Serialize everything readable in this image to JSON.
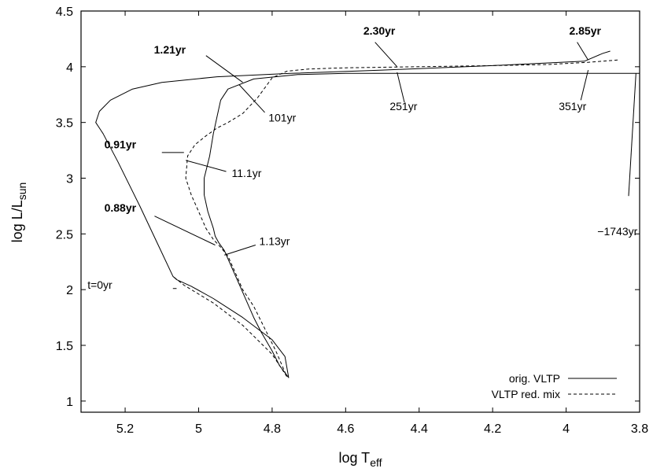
{
  "chart_data": {
    "type": "line",
    "xlabel": "log T",
    "xlabel_sub": "eff",
    "ylabel": "log L/L",
    "ylabel_sub": "sun",
    "xlim": [
      5.32,
      3.8
    ],
    "ylim": [
      0.9,
      4.5
    ],
    "x_reversed": true,
    "grid": false,
    "legend_position": "bottom-right",
    "x_ticks": [
      {
        "v": 5.2,
        "label": "5.2"
      },
      {
        "v": 5.0,
        "label": "5"
      },
      {
        "v": 4.8,
        "label": "4.8"
      },
      {
        "v": 4.6,
        "label": "4.6"
      },
      {
        "v": 4.4,
        "label": "4.4"
      },
      {
        "v": 4.2,
        "label": "4.2"
      },
      {
        "v": 4.0,
        "label": "4"
      },
      {
        "v": 3.8,
        "label": "3.8"
      }
    ],
    "y_ticks": [
      {
        "v": 1.0,
        "label": "1"
      },
      {
        "v": 1.5,
        "label": "1.5"
      },
      {
        "v": 2.0,
        "label": "2"
      },
      {
        "v": 2.5,
        "label": "2.5"
      },
      {
        "v": 3.0,
        "label": "3"
      },
      {
        "v": 3.5,
        "label": "3.5"
      },
      {
        "v": 4.0,
        "label": "4"
      },
      {
        "v": 4.5,
        "label": "4.5"
      }
    ],
    "series": [
      {
        "name": "orig. VLTP",
        "style": "solid",
        "x": [
          3.8,
          3.86,
          3.94,
          4.05,
          4.2,
          4.4,
          4.6,
          4.73,
          4.85,
          4.92,
          4.94,
          4.95,
          4.96,
          4.97,
          4.985,
          4.985,
          4.975,
          4.96,
          4.955,
          4.945,
          4.93,
          4.91,
          4.89,
          4.87,
          4.85,
          4.83,
          4.8,
          4.78,
          4.755,
          4.765,
          4.8,
          4.88,
          4.96,
          5.02,
          5.06,
          5.07,
          5.11,
          5.16,
          5.22,
          5.26,
          5.28,
          5.27,
          5.24,
          5.18,
          5.1,
          4.95,
          4.75,
          4.5,
          4.2,
          3.95,
          3.9,
          3.88
        ],
        "y": [
          3.94,
          3.94,
          3.94,
          3.94,
          3.94,
          3.94,
          3.94,
          3.93,
          3.89,
          3.8,
          3.7,
          3.55,
          3.4,
          3.2,
          3.0,
          2.85,
          2.7,
          2.55,
          2.48,
          2.42,
          2.35,
          2.2,
          2.05,
          1.9,
          1.75,
          1.62,
          1.45,
          1.32,
          1.21,
          1.4,
          1.55,
          1.75,
          1.92,
          2.03,
          2.09,
          2.12,
          2.4,
          2.75,
          3.15,
          3.4,
          3.5,
          3.6,
          3.7,
          3.8,
          3.86,
          3.91,
          3.94,
          3.97,
          4.01,
          4.05,
          4.12,
          4.14
        ]
      },
      {
        "name": "VLTP red. mix",
        "style": "dashed",
        "x": [
          3.86,
          3.94,
          4.05,
          4.2,
          4.4,
          4.6,
          4.7,
          4.76,
          4.8,
          4.84,
          4.88,
          4.92,
          4.95,
          4.98,
          5.01,
          5.03,
          5.035,
          5.02,
          5.0,
          4.98,
          4.96,
          4.94,
          4.92,
          4.9,
          4.88,
          4.85,
          4.82,
          4.79,
          4.76,
          4.8,
          4.88,
          4.96,
          5.04,
          5.07
        ],
        "y": [
          4.06,
          4.04,
          4.02,
          4.01,
          4.0,
          3.99,
          3.98,
          3.96,
          3.9,
          3.72,
          3.58,
          3.5,
          3.45,
          3.38,
          3.3,
          3.2,
          3.0,
          2.85,
          2.7,
          2.55,
          2.45,
          2.38,
          2.3,
          2.15,
          2.0,
          1.85,
          1.65,
          1.45,
          1.22,
          1.42,
          1.68,
          1.88,
          2.04,
          2.12
        ]
      }
    ],
    "annotations": [
      {
        "text": "t=0yr",
        "bold": false,
        "anchor": "end",
        "lx": 5.235,
        "ly": 2.01,
        "tx": 5.07,
        "ty": 2.01,
        "px": 5.06,
        "py": 2.01
      },
      {
        "text": "0.88yr",
        "bold": true,
        "anchor": "end",
        "lx": 5.17,
        "ly": 2.7,
        "tx": 5.12,
        "ty": 2.66,
        "px": 4.955,
        "py": 2.4
      },
      {
        "text": "1.13yr",
        "bold": false,
        "anchor": "start",
        "lx": 4.835,
        "ly": 2.4,
        "tx": 4.845,
        "ty": 2.4,
        "px": 4.93,
        "py": 2.31
      },
      {
        "text": "0.91yr",
        "bold": true,
        "anchor": "end",
        "lx": 5.17,
        "ly": 3.27,
        "tx": 5.1,
        "ty": 3.23,
        "px": 5.04,
        "py": 3.23
      },
      {
        "text": "11.1yr",
        "bold": false,
        "anchor": "start",
        "lx": 4.91,
        "ly": 3.01,
        "tx": 4.925,
        "ty": 3.06,
        "px": 5.035,
        "py": 3.16
      },
      {
        "text": "1.21yr",
        "bold": true,
        "anchor": "end",
        "lx": 5.035,
        "ly": 4.12,
        "tx": 4.98,
        "ty": 4.1,
        "px": 4.88,
        "py": 3.86
      },
      {
        "text": "101yr",
        "bold": false,
        "anchor": "start",
        "lx": 4.81,
        "ly": 3.51,
        "tx": 4.82,
        "ty": 3.59,
        "px": 4.89,
        "py": 3.84
      },
      {
        "text": "2.30yr",
        "bold": true,
        "anchor": "end",
        "lx": 4.465,
        "ly": 4.29,
        "tx": 4.52,
        "ty": 4.22,
        "px": 4.46,
        "py": 4.0
      },
      {
        "text": "251yr",
        "bold": false,
        "anchor": "start",
        "lx": 4.48,
        "ly": 3.61,
        "tx": 4.44,
        "ty": 3.68,
        "px": 4.46,
        "py": 3.95
      },
      {
        "text": "2.85yr",
        "bold": true,
        "anchor": "end",
        "lx": 3.905,
        "ly": 4.29,
        "tx": 3.97,
        "ty": 4.22,
        "px": 3.94,
        "py": 4.06
      },
      {
        "text": "351yr",
        "bold": false,
        "anchor": "start",
        "lx": 4.02,
        "ly": 3.61,
        "tx": 3.96,
        "ty": 3.7,
        "px": 3.94,
        "py": 3.97
      },
      {
        "text": "−1743yr",
        "bold": false,
        "anchor": "start",
        "lx": 3.915,
        "ly": 2.49,
        "tx": 3.83,
        "ty": 2.84,
        "px": 3.81,
        "py": 3.94
      }
    ]
  }
}
